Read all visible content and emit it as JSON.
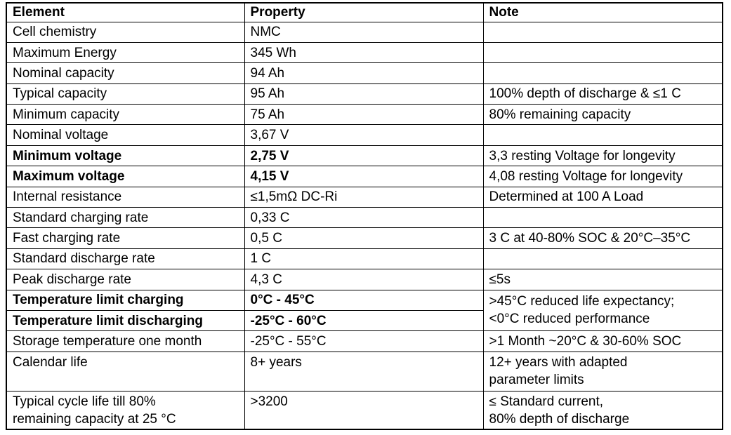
{
  "table": {
    "headers": [
      "Element",
      "Property",
      "Note"
    ],
    "rows": [
      {
        "element": "Cell chemistry",
        "property": "NMC",
        "note": ""
      },
      {
        "element": "Maximum Energy",
        "property": "345 Wh",
        "note": ""
      },
      {
        "element": "Nominal capacity",
        "property": "94 Ah",
        "note": ""
      },
      {
        "element": "Typical capacity",
        "property": "95 Ah",
        "note": "100% depth of discharge & ≤1 C"
      },
      {
        "element": "Minimum capacity",
        "property": "75 Ah",
        "note": "80% remaining capacity"
      },
      {
        "element": "Nominal voltage",
        "property": "3,67 V",
        "note": ""
      },
      {
        "element": "Minimum voltage",
        "property": "2,75 V",
        "note": "3,3 resting Voltage for longevity",
        "bold": true
      },
      {
        "element": "Maximum voltage",
        "property": "4,15 V",
        "note": "4,08 resting Voltage for longevity",
        "bold": true
      },
      {
        "element": "Internal resistance",
        "property": "≤1,5mΩ DC-Ri",
        "note": "Determined at 100 A Load"
      },
      {
        "element": "Standard charging rate",
        "property": "0,33 C",
        "note": ""
      },
      {
        "element": "Fast charging rate",
        "property": "0,5 C",
        "note": "3 C at 40-80% SOC & 20°C–35°C"
      },
      {
        "element": "Standard discharge rate",
        "property": "1 C",
        "note": ""
      },
      {
        "element": "Peak discharge rate",
        "property": "4,3 C",
        "note": "≤5s"
      },
      {
        "element": "Temperature limit charging",
        "property": "0°C - 45°C",
        "note": ">45°C reduced life expectancy;\n<0°C reduced performance",
        "bold": true,
        "note_rowspan": 2
      },
      {
        "element": "Temperature limit discharging",
        "property": "-25°C - 60°C",
        "note": "",
        "bold": true,
        "note_merged": true
      },
      {
        "element": "Storage temperature one month",
        "property": "-25°C - 55°C",
        "note": ">1 Month ~20°C & 30-60% SOC"
      },
      {
        "element": "Calendar life",
        "property": "8+ years",
        "note": "12+ years with adapted\nparameter limits",
        "tall": true
      },
      {
        "element": "Typical cycle life till 80%\nremaining capacity at 25 °C",
        "property": ">3200",
        "note": "≤ Standard current,\n80% depth of discharge",
        "tall": true
      }
    ]
  }
}
